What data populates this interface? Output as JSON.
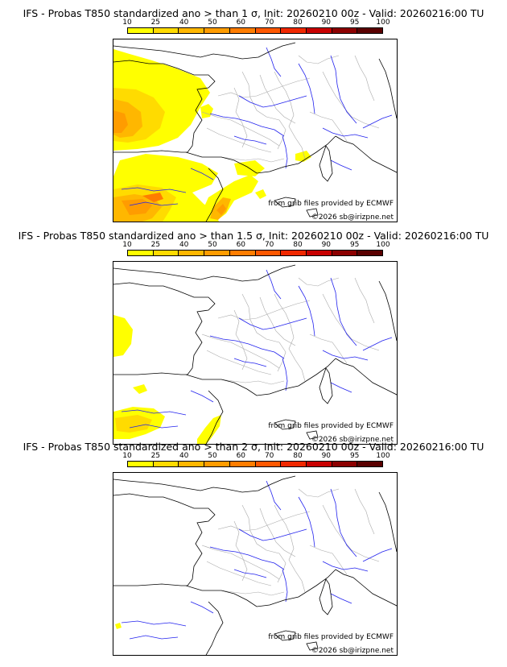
{
  "legend": {
    "ticks": [
      "10",
      "25",
      "40",
      "50",
      "60",
      "70",
      "80",
      "90",
      "95",
      "100"
    ],
    "colors": [
      "#ffff00",
      "#ffdb00",
      "#ffb700",
      "#ff9c00",
      "#ff7d00",
      "#ff5800",
      "#f02800",
      "#c80000",
      "#8c0000",
      "#5a0000"
    ]
  },
  "panels": [
    {
      "title": "IFS - Probas T850  standardized ano > than 1 σ, Init: 20260210 00z - Valid: 20260216:00 TU",
      "credit_source": "from grib files provided by ECMWF",
      "credit_copyright": "©2026 sb@irizpne.net"
    },
    {
      "title": "IFS - Probas T850  standardized ano > than 1.5 σ, Init: 20260210 00z - Valid: 20260216:00 TU",
      "credit_source": "from grib files provided by ECMWF",
      "credit_copyright": "©2026 sb@irizpne.net"
    },
    {
      "title": "IFS - Probas T850  standardized ano > than 2 σ, Init: 20260210 00z - Valid: 20260216:00 TU",
      "credit_source": "from grib files provided by ECMWF",
      "credit_copyright": "©2026 sb@irizpne.net"
    }
  ]
}
